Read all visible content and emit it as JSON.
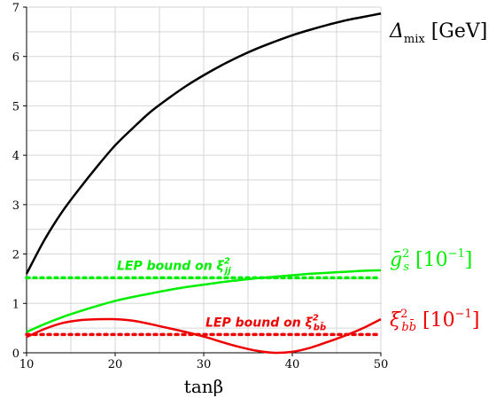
{
  "chart_data": {
    "type": "line",
    "xlabel": "tanβ",
    "ylabel": "",
    "xlim": [
      10,
      50
    ],
    "ylim": [
      0,
      7
    ],
    "grid": true,
    "x_ticks": [
      10,
      20,
      30,
      40,
      50
    ],
    "y_ticks": [
      0,
      1,
      2,
      3,
      4,
      5,
      6,
      7
    ],
    "series": [
      {
        "name": "Δ_mix [GeV]",
        "label_main": "Δ",
        "label_sub": "mix",
        "label_unit": " [GeV]",
        "color": "#000000",
        "style": "solid",
        "x": [
          10,
          12,
          14,
          16,
          18,
          20,
          22,
          24,
          26,
          28,
          30,
          32,
          34,
          36,
          38,
          40,
          42,
          44,
          46,
          48,
          50
        ],
        "y": [
          1.6,
          2.28,
          2.85,
          3.33,
          3.78,
          4.2,
          4.55,
          4.88,
          5.15,
          5.4,
          5.62,
          5.82,
          6.0,
          6.16,
          6.3,
          6.43,
          6.54,
          6.64,
          6.73,
          6.8,
          6.87
        ]
      },
      {
        "name": "ḡ_s^2 [10^-1]",
        "label_main": "ḡ",
        "label_sub": "s",
        "label_sup": "2",
        "label_unit": " [10",
        "label_unit_sup": "−1",
        "label_unit_close": "]",
        "color": "#00ee00",
        "style": "solid",
        "x": [
          10,
          12,
          14,
          16,
          18,
          20,
          22,
          24,
          26,
          28,
          30,
          32,
          34,
          36,
          38,
          40,
          42,
          44,
          46,
          48,
          50
        ],
        "y": [
          0.42,
          0.58,
          0.72,
          0.84,
          0.95,
          1.05,
          1.13,
          1.2,
          1.27,
          1.33,
          1.38,
          1.43,
          1.47,
          1.51,
          1.54,
          1.57,
          1.6,
          1.62,
          1.64,
          1.66,
          1.67
        ]
      },
      {
        "name": "ξ_bb̄^2 [10^-1]",
        "label_main": "ξ",
        "label_sub": "bb̄",
        "label_sup": "2",
        "label_unit": " [10",
        "label_unit_sup": "−1",
        "label_unit_close": "]",
        "color": "#ee0000",
        "style": "solid",
        "x": [
          10,
          12,
          14,
          16,
          18,
          20,
          22,
          24,
          26,
          28,
          30,
          32,
          34,
          36,
          38,
          40,
          42,
          44,
          46,
          48,
          50
        ],
        "y": [
          0.32,
          0.48,
          0.6,
          0.66,
          0.68,
          0.68,
          0.65,
          0.58,
          0.5,
          0.42,
          0.33,
          0.22,
          0.12,
          0.04,
          0.0,
          0.02,
          0.1,
          0.22,
          0.35,
          0.5,
          0.68
        ]
      }
    ],
    "reference_lines": [
      {
        "name": "LEP bound on ξ_jj^2",
        "label_prefix": "LEP bound on ξ",
        "label_sub": "jj",
        "label_sup": "2",
        "y": 1.52,
        "color": "#00ee00",
        "style": "dotted"
      },
      {
        "name": "LEP bound on ξ_bb̄^2",
        "label_prefix": "LEP bound on ξ",
        "label_sub": "bb̄",
        "label_sup": "2",
        "y": 0.37,
        "color": "#ee0000",
        "style": "dotted"
      }
    ]
  }
}
